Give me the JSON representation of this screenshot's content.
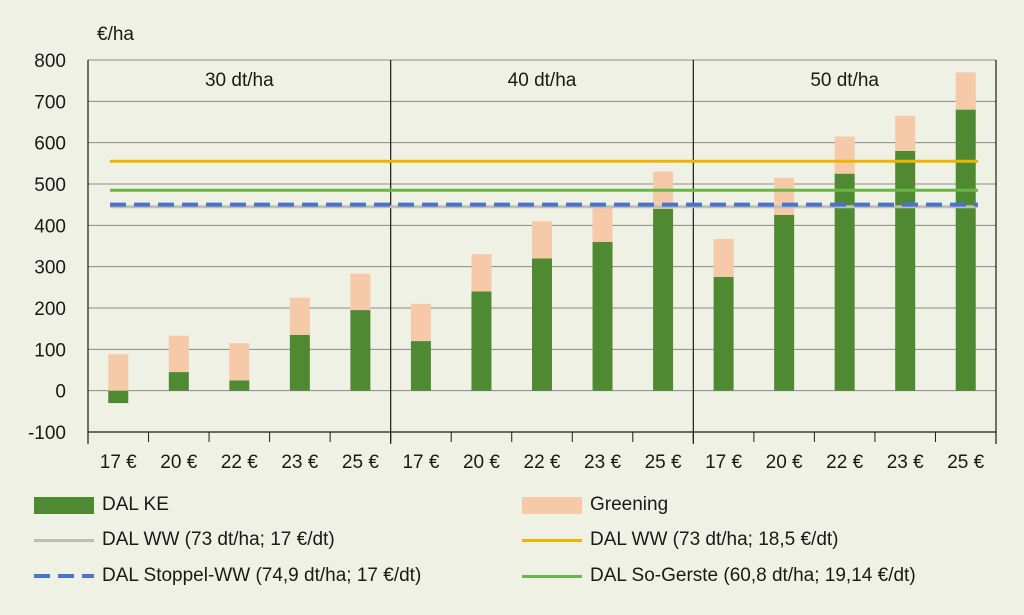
{
  "chart_data": {
    "type": "bar",
    "ylabel": "€/ha",
    "ylim": [
      -100,
      800
    ],
    "yticks": [
      "800",
      "700",
      "600",
      "500",
      "400",
      "300",
      "200",
      "100",
      "0",
      "-100"
    ],
    "ytick_values": [
      800,
      700,
      600,
      500,
      400,
      300,
      200,
      100,
      0,
      -100
    ],
    "groups": [
      "30 dt/ha",
      "40 dt/ha",
      "50 dt/ha"
    ],
    "categories": [
      "17 €",
      "20 €",
      "22 €",
      "23 €",
      "25 €",
      "17 €",
      "20 €",
      "22 €",
      "23 €",
      "25 €",
      "17 €",
      "20 €",
      "22 €",
      "23 €",
      "25 €"
    ],
    "stacked": true,
    "series": [
      {
        "name": "DAL KE",
        "color": "#4f8a33",
        "values": [
          -30,
          45,
          25,
          135,
          195,
          120,
          240,
          320,
          360,
          440,
          275,
          425,
          525,
          580,
          680
        ]
      },
      {
        "name": "Greening",
        "color": "#f6c9a9",
        "values": [
          88,
          88,
          90,
          90,
          88,
          90,
          90,
          90,
          85,
          90,
          92,
          90,
          90,
          85,
          90
        ]
      }
    ],
    "reference_lines": [
      {
        "name": "DAL WW (73 dt/ha; 17 €/dt)",
        "value": 445,
        "color": "#bdbdbd",
        "style": "solid"
      },
      {
        "name": "DAL WW (73 dt/ha; 18,5 €/dt)",
        "value": 555,
        "color": "#f0b400",
        "style": "solid"
      },
      {
        "name": "DAL Stoppel-WW (74,9 dt/ha; 17 €/dt)",
        "value": 450,
        "color": "#4a74c9",
        "style": "dashed"
      },
      {
        "name": "DAL So-Gerste (60,8 dt/ha; 19,14 €/dt)",
        "value": 485,
        "color": "#6ab547",
        "style": "solid"
      }
    ],
    "grid": true,
    "legend_position": "bottom"
  }
}
